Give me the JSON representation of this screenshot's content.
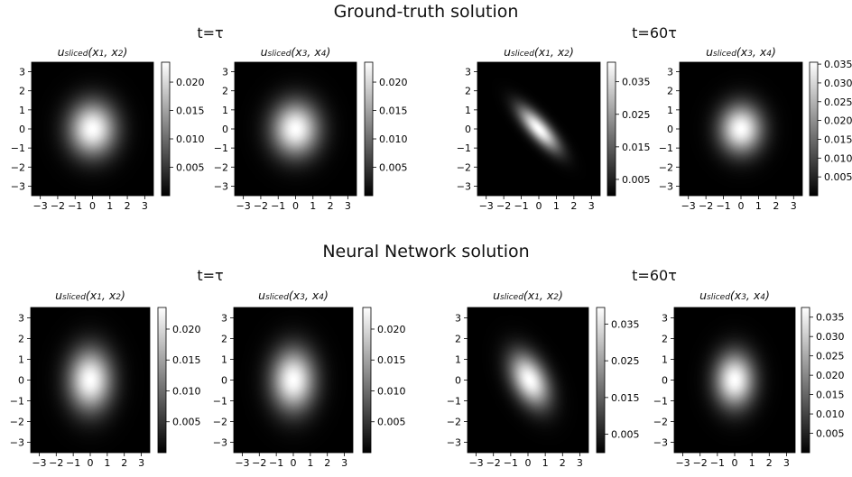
{
  "rows": [
    {
      "title": "Ground-truth solution",
      "groups": [
        {
          "label": "t=τ",
          "panels": [
            {
              "title": "u_sliced(x1, x2)",
              "vmax": 0.0235,
              "cbar_ticks": [
                0.005,
                0.01,
                0.015,
                0.02
              ],
              "cbar_labels": [
                "0.005",
                "0.010",
                "0.015",
                "0.020"
              ],
              "sx": 0.95,
              "sy": 1.0,
              "rho": 0.0,
              "cx": 0.0,
              "cy": 0.0
            },
            {
              "title": "u_sliced(x3, x4)",
              "vmax": 0.0235,
              "cbar_ticks": [
                0.005,
                0.01,
                0.015,
                0.02
              ],
              "cbar_labels": [
                "0.005",
                "0.010",
                "0.015",
                "0.020"
              ],
              "sx": 0.95,
              "sy": 1.0,
              "rho": 0.0,
              "cx": 0.0,
              "cy": 0.0
            }
          ]
        },
        {
          "label": "t=60τ",
          "panels": [
            {
              "title": "u_sliced(x1, x2)",
              "vmax": 0.041,
              "cbar_ticks": [
                0.005,
                0.015,
                0.025,
                0.035
              ],
              "cbar_labels": [
                "0.005",
                "0.015",
                "0.025",
                "0.035"
              ],
              "sx": 0.78,
              "sy": 0.78,
              "rho": -0.78,
              "cx": 0.0,
              "cy": 0.0
            },
            {
              "title": "u_sliced(x3, x4)",
              "vmax": 0.0355,
              "cbar_ticks": [
                0.005,
                0.01,
                0.015,
                0.02,
                0.025,
                0.03,
                0.035
              ],
              "cbar_labels": [
                "0.005",
                "0.010",
                "0.015",
                "0.020",
                "0.025",
                "0.030",
                "0.035"
              ],
              "sx": 0.85,
              "sy": 0.9,
              "rho": 0.0,
              "cx": 0.0,
              "cy": 0.0
            }
          ]
        }
      ]
    },
    {
      "title": "Neural Network solution",
      "groups": [
        {
          "label": "t=τ",
          "panels": [
            {
              "title": "u_sliced(x1, x2)",
              "vmax": 0.0235,
              "cbar_ticks": [
                0.005,
                0.01,
                0.015,
                0.02
              ],
              "cbar_labels": [
                "0.005",
                "0.010",
                "0.015",
                "0.020"
              ],
              "sx": 0.9,
              "sy": 1.05,
              "rho": 0.0,
              "cx": 0.0,
              "cy": 0.0
            },
            {
              "title": "u_sliced(x3, x4)",
              "vmax": 0.0235,
              "cbar_ticks": [
                0.005,
                0.01,
                0.015,
                0.02
              ],
              "cbar_labels": [
                "0.005",
                "0.010",
                "0.015",
                "0.020"
              ],
              "sx": 0.9,
              "sy": 1.05,
              "rho": 0.0,
              "cx": 0.0,
              "cy": 0.0
            }
          ]
        },
        {
          "label": "t=60τ",
          "panels": [
            {
              "title": "u_sliced(x1, x2)",
              "vmax": 0.0395,
              "cbar_ticks": [
                0.005,
                0.015,
                0.025,
                0.035
              ],
              "cbar_labels": [
                "0.005",
                "0.015",
                "0.025",
                "0.035"
              ],
              "sx": 0.8,
              "sy": 0.9,
              "rho": -0.4,
              "cx": 0.1,
              "cy": 0.0
            },
            {
              "title": "u_sliced(x3, x4)",
              "vmax": 0.0375,
              "cbar_ticks": [
                0.005,
                0.01,
                0.015,
                0.02,
                0.025,
                0.03,
                0.035
              ],
              "cbar_labels": [
                "0.005",
                "0.010",
                "0.015",
                "0.020",
                "0.025",
                "0.030",
                "0.035"
              ],
              "sx": 0.8,
              "sy": 0.92,
              "rho": 0.0,
              "cx": 0.0,
              "cy": 0.0
            }
          ]
        }
      ]
    }
  ],
  "chart_data": {
    "type": "heatmap",
    "colormap": "grayscale",
    "xlim": [
      -3.5,
      3.5
    ],
    "ylim": [
      -3.5,
      3.5
    ],
    "xticks": [
      -3,
      -2,
      -1,
      0,
      1,
      2,
      3
    ],
    "yticks": [
      -3,
      -2,
      -1,
      0,
      1,
      2,
      3
    ],
    "grid": false,
    "panels": 8,
    "peak_location": [
      0,
      0
    ]
  }
}
